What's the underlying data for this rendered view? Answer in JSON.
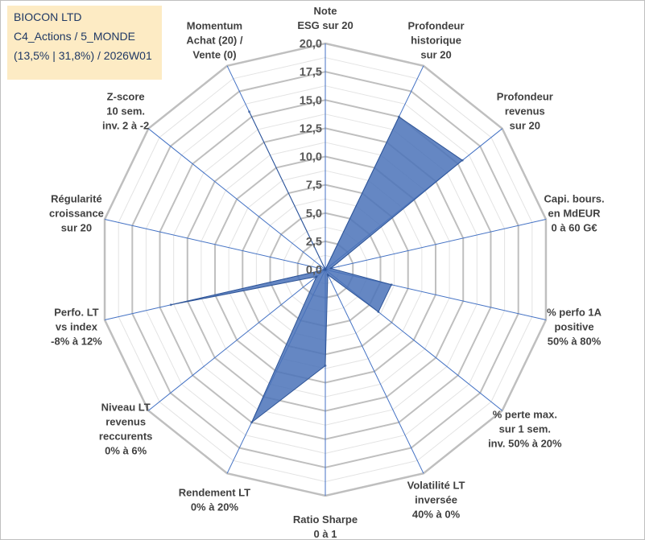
{
  "header": {
    "lines": [
      "BIOCON LTD",
      "C4_Actions / 5_MONDE",
      "(13,5% | 31,8%) / 2026W01"
    ]
  },
  "colors": {
    "fill": "#4a72b8",
    "stroke": "#2f5597",
    "grid": "#bfbfbf",
    "spoke": "#4472c4",
    "title_bg": "#fdebc4"
  },
  "chart_data": {
    "type": "radar",
    "title": "",
    "rmin": 0,
    "rmax": 20,
    "ticks": [
      "0,0",
      "2,5",
      "5,0",
      "7,5",
      "10,0",
      "12,5",
      "15,0",
      "17,5",
      "20,0"
    ],
    "tick_values": [
      0,
      2.5,
      5,
      7.5,
      10,
      12.5,
      15,
      17.5,
      20
    ],
    "axes": [
      {
        "label": [
          "Note",
          "ESG sur 20"
        ],
        "value": 0.0
      },
      {
        "label": [
          "Profondeur",
          "historique",
          "sur 20"
        ],
        "value": 15.0
      },
      {
        "label": [
          "Profondeur",
          "revenus",
          "sur 20"
        ],
        "value": 15.5
      },
      {
        "label": [
          "Capi. bours.",
          "en MdEUR",
          "0 à 60 G€"
        ],
        "value": 0.5
      },
      {
        "label": [
          "% perfo 1A",
          "positive",
          "50% à 80%"
        ],
        "value": 6.0
      },
      {
        "label": [
          "% perte max.",
          "sur 1 sem.",
          "inv. 50% à 20%"
        ],
        "value": 6.0
      },
      {
        "label": [
          "Volatilité LT",
          "inversée",
          "40% à 0%"
        ],
        "value": 0.5
      },
      {
        "label": [
          "Ratio Sharpe",
          "0 à 1"
        ],
        "value": 8.5
      },
      {
        "label": [
          "Rendement LT",
          "0% à 20%"
        ],
        "value": 15.0
      },
      {
        "label": [
          "Niveau LT",
          "revenus",
          "reccurents",
          "0% à 6%"
        ],
        "value": 1.0
      },
      {
        "label": [
          "Perfo. LT",
          "vs index",
          "-8% à 12%"
        ],
        "value": 14.0
      },
      {
        "label": [
          "Régularité",
          "croissance",
          "sur 20"
        ],
        "value": 0.0
      },
      {
        "label": [
          "Z-score",
          "10 sem.",
          "inv. 2 à -2"
        ],
        "value": 0.0
      },
      {
        "label": [
          "Momentum",
          "Achat (20) /",
          "Vente (0)"
        ],
        "value": 15.5
      }
    ]
  }
}
